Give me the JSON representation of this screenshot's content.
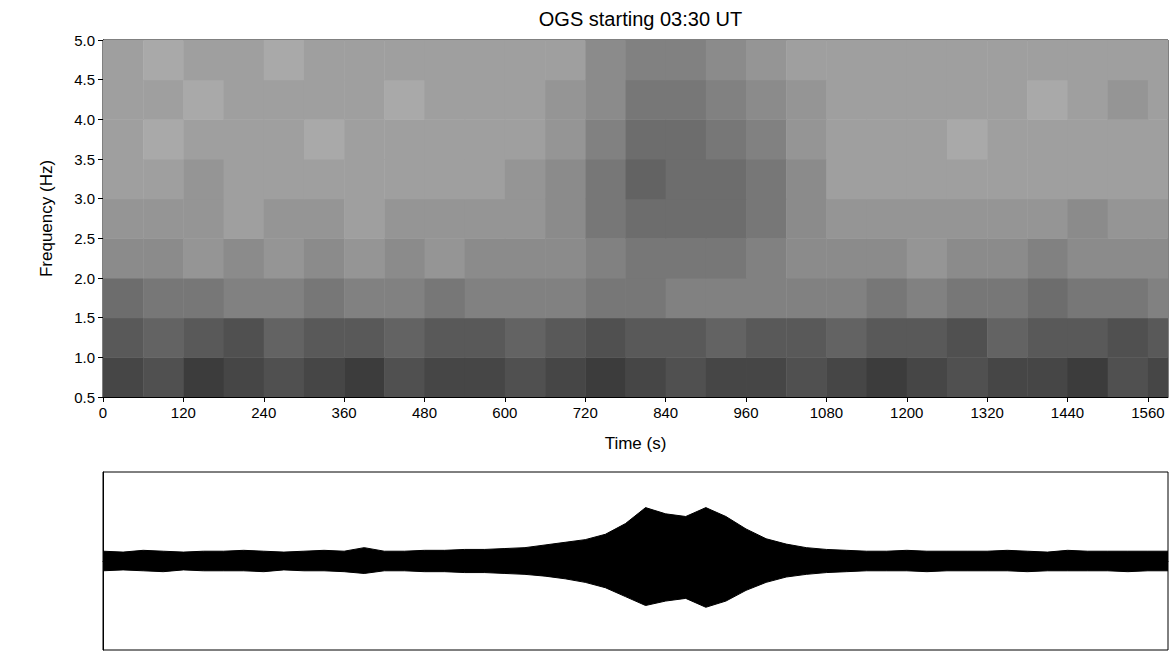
{
  "chart_data": [
    {
      "type": "heatmap",
      "title": "OGS starting 03:30 UT",
      "x_label": "Time (s)",
      "y_label": "Frequency (Hz)",
      "xlim": [
        0,
        1590
      ],
      "ylim": [
        0.5,
        5.0
      ],
      "xticks": [
        0,
        120,
        240,
        360,
        480,
        600,
        720,
        840,
        960,
        1080,
        1200,
        1320,
        1440,
        1560
      ],
      "yticks": [
        0.5,
        {
          "value": 1,
          "label": "1.0"
        },
        1.5,
        {
          "value": 2,
          "label": "2.0"
        },
        2.5,
        {
          "value": 3,
          "label": "3.0"
        },
        3.5,
        {
          "value": 4,
          "label": "4.0"
        },
        4.5,
        {
          "value": 5,
          "label": "5.0"
        }
      ],
      "grid": false,
      "x_edges": [
        0,
        60,
        120,
        180,
        240,
        300,
        360,
        420,
        480,
        540,
        600,
        660,
        720,
        780,
        840,
        900,
        960,
        1020,
        1080,
        1140,
        1200,
        1260,
        1320,
        1380,
        1440,
        1500,
        1560,
        1590
      ],
      "y_edges": [
        0.5,
        1.0,
        1.5,
        2.0,
        2.5,
        3.0,
        3.5,
        4.0,
        4.5,
        5.0
      ],
      "color_range": [
        0,
        10
      ],
      "values": [
        [
          8,
          7.5,
          8.5,
          8,
          7.5,
          8,
          8.5,
          7.5,
          8,
          8,
          7.5,
          8,
          8.5,
          8,
          7.5,
          8,
          8,
          7.5,
          8,
          8.5,
          8,
          7.5,
          8,
          8,
          8.5,
          7.5,
          8
        ],
        [
          7,
          6.5,
          7,
          7.5,
          6.5,
          7,
          7,
          6.5,
          7,
          7,
          6.5,
          7,
          7.5,
          7,
          7,
          6.5,
          7,
          7,
          6.5,
          7,
          7,
          7.5,
          6.5,
          7,
          7,
          7.5,
          7
        ],
        [
          6,
          5.5,
          5.5,
          5,
          5,
          5.5,
          5,
          5,
          5.5,
          5,
          5,
          5,
          5.5,
          5.5,
          5,
          5,
          5,
          5,
          5,
          5.5,
          5,
          5.5,
          5.5,
          6,
          5.5,
          5.5,
          5
        ],
        [
          4.5,
          4.5,
          4,
          4.5,
          4,
          4.5,
          4,
          4.5,
          4,
          4.5,
          4.5,
          4.5,
          5,
          5.5,
          5.5,
          5.5,
          5,
          4.5,
          4.5,
          4.5,
          4,
          4.5,
          4.5,
          5,
          4.5,
          4.5,
          4.5
        ],
        [
          4,
          4,
          4,
          3.5,
          4,
          4,
          3.5,
          4,
          4,
          4,
          4,
          4.5,
          5.5,
          6,
          6,
          6,
          5.5,
          4.5,
          4,
          4,
          4,
          4,
          4,
          4,
          4.5,
          4,
          4
        ],
        [
          3.5,
          3.5,
          4,
          3.5,
          3.5,
          3.5,
          3.5,
          3.5,
          3.5,
          3.5,
          4,
          4.5,
          5.5,
          6.5,
          6,
          6,
          5.5,
          4.5,
          3.5,
          3.5,
          3.5,
          3.5,
          3.5,
          3.5,
          3.5,
          3.5,
          3.5
        ],
        [
          3.5,
          3,
          3.5,
          3.5,
          3.5,
          3,
          3.5,
          3.5,
          3.5,
          3.5,
          3.5,
          4,
          5,
          6,
          6,
          5.5,
          5,
          4,
          3.5,
          3.5,
          3.5,
          3,
          3.5,
          3.5,
          3.5,
          3.5,
          3.5
        ],
        [
          3.5,
          3.5,
          3,
          3.5,
          3.5,
          3.5,
          3.5,
          3,
          3.5,
          3.5,
          3.5,
          4,
          4.5,
          5.5,
          5.5,
          5,
          4.5,
          4,
          3.5,
          3.5,
          3.5,
          3.5,
          3.5,
          3,
          3.5,
          4,
          3.5
        ],
        [
          3.5,
          3,
          3.5,
          3.5,
          3,
          3.5,
          3.5,
          3.5,
          3.5,
          3.5,
          3.5,
          3.5,
          4.5,
          5,
          5,
          4.5,
          4,
          3.5,
          3.5,
          3.5,
          3.5,
          3.5,
          3.5,
          3.5,
          3.5,
          3.5,
          3.5
        ]
      ]
    },
    {
      "type": "area",
      "xlim": [
        0,
        1590
      ],
      "ylim": [
        -1,
        1
      ],
      "tick_labels": false,
      "color": "#000000",
      "x": [
        0,
        30,
        60,
        90,
        120,
        150,
        180,
        210,
        240,
        270,
        300,
        330,
        360,
        390,
        420,
        450,
        480,
        510,
        540,
        570,
        600,
        630,
        660,
        690,
        720,
        750,
        780,
        810,
        840,
        870,
        900,
        930,
        960,
        990,
        1020,
        1050,
        1080,
        1110,
        1140,
        1170,
        1200,
        1230,
        1260,
        1290,
        1320,
        1350,
        1380,
        1410,
        1440,
        1470,
        1500,
        1530,
        1560,
        1590
      ],
      "upper": [
        0.11,
        0.1,
        0.12,
        0.11,
        0.1,
        0.11,
        0.11,
        0.12,
        0.11,
        0.1,
        0.11,
        0.12,
        0.11,
        0.15,
        0.11,
        0.11,
        0.12,
        0.12,
        0.13,
        0.13,
        0.14,
        0.15,
        0.18,
        0.21,
        0.24,
        0.3,
        0.42,
        0.6,
        0.53,
        0.5,
        0.6,
        0.5,
        0.36,
        0.25,
        0.19,
        0.15,
        0.13,
        0.12,
        0.11,
        0.11,
        0.12,
        0.11,
        0.11,
        0.11,
        0.11,
        0.12,
        0.11,
        0.1,
        0.12,
        0.11,
        0.11,
        0.11,
        0.11,
        0.11
      ],
      "lower": [
        -0.11,
        -0.1,
        -0.11,
        -0.12,
        -0.1,
        -0.11,
        -0.11,
        -0.11,
        -0.12,
        -0.1,
        -0.11,
        -0.11,
        -0.12,
        -0.14,
        -0.11,
        -0.11,
        -0.12,
        -0.12,
        -0.13,
        -0.13,
        -0.14,
        -0.15,
        -0.17,
        -0.2,
        -0.24,
        -0.3,
        -0.4,
        -0.5,
        -0.45,
        -0.42,
        -0.52,
        -0.45,
        -0.33,
        -0.24,
        -0.18,
        -0.15,
        -0.13,
        -0.12,
        -0.11,
        -0.11,
        -0.11,
        -0.12,
        -0.11,
        -0.11,
        -0.11,
        -0.11,
        -0.12,
        -0.11,
        -0.11,
        -0.11,
        -0.11,
        -0.12,
        -0.11,
        -0.11
      ]
    }
  ]
}
